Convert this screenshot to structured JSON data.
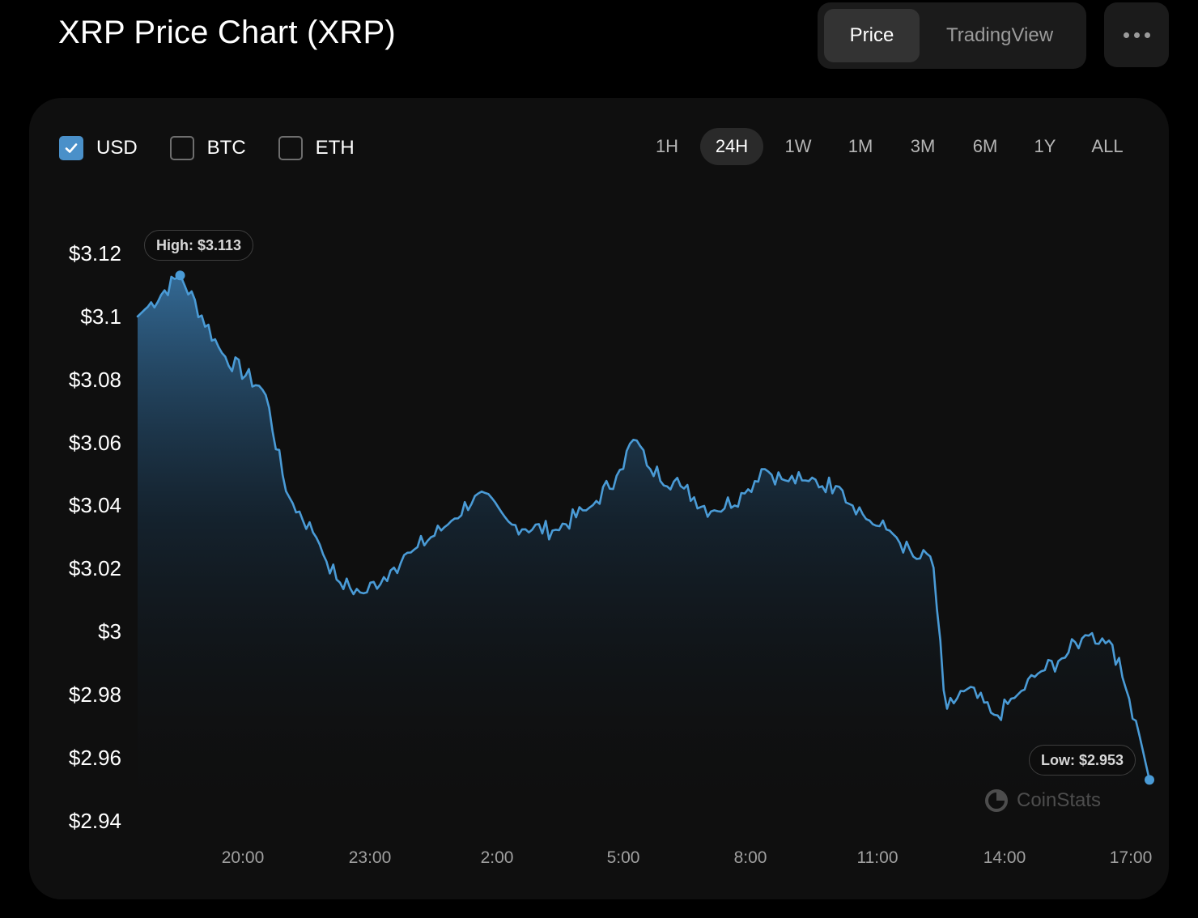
{
  "header": {
    "title": "XRP Price Chart (XRP)",
    "view_tabs": [
      {
        "label": "Price",
        "active": true
      },
      {
        "label": "TradingView",
        "active": false
      }
    ],
    "more_icon": "ellipsis-icon"
  },
  "currencies": [
    {
      "label": "USD",
      "checked": true
    },
    {
      "label": "BTC",
      "checked": false
    },
    {
      "label": "ETH",
      "checked": false
    }
  ],
  "ranges": [
    {
      "label": "1H",
      "active": false
    },
    {
      "label": "24H",
      "active": true
    },
    {
      "label": "1W",
      "active": false
    },
    {
      "label": "1M",
      "active": false
    },
    {
      "label": "3M",
      "active": false
    },
    {
      "label": "6M",
      "active": false
    },
    {
      "label": "1Y",
      "active": false
    },
    {
      "label": "ALL",
      "active": false
    }
  ],
  "chart": {
    "high_label": "High: $3.113",
    "low_label": "Low: $2.953",
    "watermark": "CoinStats"
  },
  "colors": {
    "accent": "#4a90c9",
    "line": "#4a9bd6",
    "background": "#000000",
    "card": "#0f0f0f"
  },
  "chart_data": {
    "type": "area",
    "title": "",
    "xlabel": "",
    "ylabel": "",
    "y_ticks": [
      "$3.12",
      "$3.1",
      "$3.08",
      "$3.06",
      "$3.04",
      "$3.02",
      "$3",
      "$2.98",
      "$2.96",
      "$2.94"
    ],
    "x_ticks": [
      "20:00",
      "23:00",
      "2:00",
      "5:00",
      "8:00",
      "11:00",
      "14:00",
      "17:00"
    ],
    "ylim": [
      2.94,
      3.12
    ],
    "xlim_hours": [
      17.5,
      41.3
    ],
    "series": [
      {
        "x_hours": [
          17.5,
          18.5,
          19.5,
          20.5,
          21.0,
          21.7,
          22.2,
          22.8,
          23.5,
          24.0,
          24.8,
          25.5,
          26.3,
          27.3,
          28.2,
          28.8,
          29.2,
          29.5,
          30.3,
          31.0,
          31.8,
          32.2,
          32.7,
          33.2,
          34.0,
          34.8,
          35.2,
          35.8,
          36.2,
          36.5,
          37.0,
          37.7,
          38.2,
          38.7,
          39.2,
          39.8,
          40.4,
          40.7,
          41.0,
          41.3
        ],
        "y_values": [
          3.1,
          3.113,
          3.088,
          3.076,
          3.044,
          3.03,
          3.016,
          3.012,
          3.02,
          3.026,
          3.034,
          3.044,
          3.034,
          3.032,
          3.04,
          3.05,
          3.062,
          3.052,
          3.046,
          3.038,
          3.044,
          3.052,
          3.048,
          3.048,
          3.046,
          3.034,
          3.032,
          3.023,
          3.024,
          2.975,
          2.982,
          2.973,
          2.98,
          2.987,
          2.991,
          2.999,
          2.997,
          2.984,
          2.971,
          2.953
        ]
      }
    ],
    "grid": false,
    "legend": "none"
  }
}
